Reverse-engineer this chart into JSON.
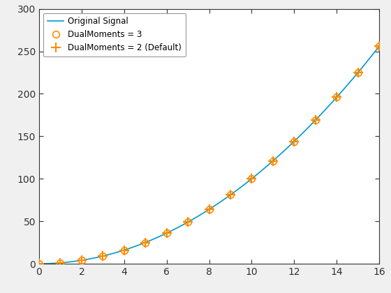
{
  "title": "",
  "xlabel": "",
  "ylabel": "",
  "xlim": [
    0,
    16
  ],
  "ylim": [
    0,
    300
  ],
  "x_continuous": {
    "start": 0,
    "stop": 16,
    "num": 1000
  },
  "x_markers": [
    0,
    1,
    2,
    3,
    4,
    5,
    6,
    7,
    8,
    9,
    10,
    11,
    12,
    13,
    14,
    15,
    16
  ],
  "line_color": "#0099CC",
  "line_width": 1.2,
  "marker_circle_color": "#FF8C00",
  "marker_star_color": "#FF8C00",
  "marker_circle_size": 7,
  "marker_star_size": 10,
  "legend_labels": [
    "Original Signal",
    "DualMoments = 3",
    "DualMoments = 2 (Default)"
  ],
  "legend_loc": "upper left",
  "xticks": [
    0,
    2,
    4,
    6,
    8,
    10,
    12,
    14,
    16
  ],
  "yticks": [
    0,
    50,
    100,
    150,
    200,
    250,
    300
  ],
  "axes_bg": "#ffffff",
  "fig_bg": "#f0f0f0",
  "grid": false,
  "figsize": [
    5.6,
    4.2
  ],
  "dpi": 100
}
